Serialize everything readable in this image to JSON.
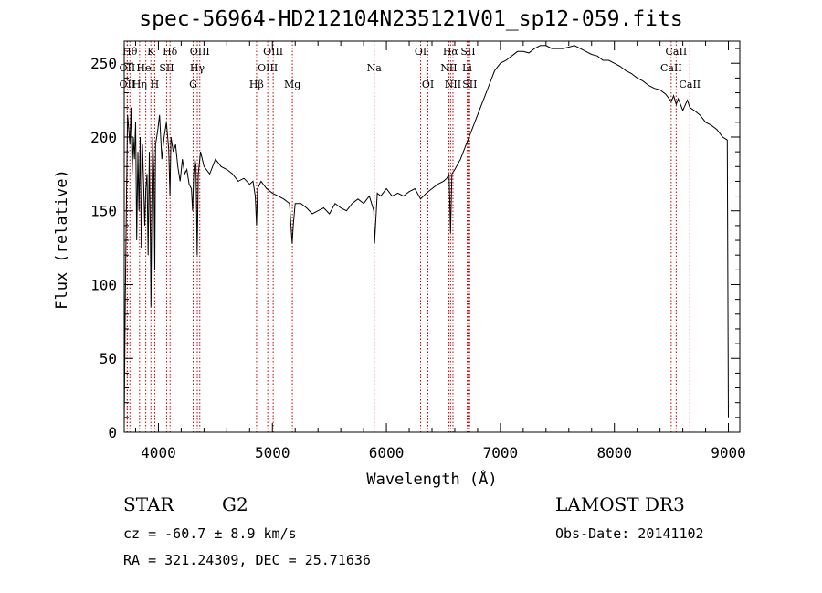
{
  "chart_data": {
    "type": "line",
    "title": "spec-56964-HD212104N235121V01_sp12-059.fits",
    "xlabel": "Wavelength (Å)",
    "ylabel": "Flux (relative)",
    "xlim": [
      3700,
      9100
    ],
    "ylim": [
      0,
      265
    ],
    "xticks": [
      4000,
      5000,
      6000,
      7000,
      8000,
      9000
    ],
    "yticks": [
      0,
      50,
      100,
      150,
      200,
      250
    ],
    "grid": false,
    "series": [
      {
        "name": "flux",
        "x": [
          3700,
          3710,
          3720,
          3730,
          3740,
          3750,
          3760,
          3770,
          3780,
          3790,
          3800,
          3810,
          3820,
          3830,
          3840,
          3850,
          3860,
          3870,
          3880,
          3890,
          3900,
          3910,
          3920,
          3930,
          3935,
          3940,
          3950,
          3960,
          3968,
          3975,
          3985,
          3995,
          4010,
          4030,
          4050,
          4070,
          4090,
          4101,
          4110,
          4130,
          4150,
          4170,
          4190,
          4210,
          4230,
          4250,
          4270,
          4290,
          4300,
          4310,
          4320,
          4330,
          4340,
          4350,
          4370,
          4400,
          4450,
          4500,
          4550,
          4600,
          4650,
          4700,
          4750,
          4800,
          4830,
          4850,
          4861,
          4870,
          4900,
          4950,
          5000,
          5050,
          5100,
          5150,
          5167,
          5173,
          5183,
          5200,
          5250,
          5300,
          5350,
          5400,
          5450,
          5500,
          5550,
          5600,
          5650,
          5700,
          5750,
          5800,
          5850,
          5890,
          5896,
          5920,
          5950,
          6000,
          6050,
          6100,
          6150,
          6200,
          6250,
          6300,
          6350,
          6400,
          6450,
          6500,
          6530,
          6550,
          6563,
          6575,
          6600,
          6650,
          6700,
          6750,
          6800,
          6850,
          6900,
          6950,
          7000,
          7050,
          7100,
          7150,
          7200,
          7250,
          7300,
          7350,
          7400,
          7450,
          7500,
          7550,
          7600,
          7650,
          7700,
          7750,
          7800,
          7850,
          7900,
          7950,
          8000,
          8050,
          8100,
          8150,
          8200,
          8250,
          8300,
          8350,
          8400,
          8450,
          8498,
          8520,
          8542,
          8560,
          8600,
          8640,
          8662,
          8700,
          8750,
          8800,
          8850,
          8900,
          8950,
          8990,
          9000
        ],
        "y": [
          5,
          90,
          160,
          215,
          205,
          195,
          220,
          175,
          200,
          185,
          210,
          130,
          190,
          150,
          200,
          125,
          195,
          170,
          140,
          165,
          175,
          120,
          190,
          130,
          85,
          140,
          200,
          175,
          110,
          195,
          200,
          205,
          215,
          185,
          200,
          210,
          192,
          160,
          200,
          190,
          195,
          180,
          170,
          185,
          175,
          178,
          168,
          165,
          150,
          175,
          185,
          180,
          120,
          175,
          190,
          180,
          175,
          185,
          180,
          178,
          175,
          170,
          172,
          168,
          170,
          160,
          140,
          165,
          170,
          165,
          162,
          160,
          158,
          155,
          135,
          128,
          140,
          155,
          155,
          152,
          148,
          150,
          152,
          148,
          155,
          152,
          150,
          155,
          158,
          155,
          160,
          150,
          128,
          162,
          160,
          165,
          160,
          162,
          160,
          163,
          165,
          158,
          162,
          165,
          168,
          170,
          172,
          175,
          135,
          175,
          178,
          185,
          195,
          205,
          215,
          225,
          235,
          245,
          250,
          252,
          255,
          258,
          258,
          257,
          260,
          262,
          262,
          260,
          260,
          260,
          261,
          262,
          260,
          258,
          256,
          255,
          252,
          252,
          250,
          248,
          245,
          243,
          240,
          238,
          235,
          233,
          232,
          229,
          224,
          228,
          222,
          226,
          218,
          225,
          220,
          218,
          215,
          210,
          208,
          205,
          200,
          198,
          10
        ]
      }
    ],
    "lines": [
      {
        "label": "Hθ",
        "x": 3750,
        "row": 1
      },
      {
        "label": "OII",
        "x": 3727,
        "row": 2
      },
      {
        "label": "OII",
        "x": 3727,
        "row": 3
      },
      {
        "label": "K",
        "x": 3934,
        "row": 1
      },
      {
        "label": "HeI",
        "x": 3889,
        "row": 2
      },
      {
        "label": "Hη",
        "x": 3835,
        "row": 3
      },
      {
        "label": "Hδ",
        "x": 4102,
        "row": 1
      },
      {
        "label": "SII",
        "x": 4072,
        "row": 2
      },
      {
        "label": "H",
        "x": 3968,
        "row": 3
      },
      {
        "label": "OIII",
        "x": 4363,
        "row": 1
      },
      {
        "label": "Hγ",
        "x": 4341,
        "row": 2
      },
      {
        "label": "G",
        "x": 4305,
        "row": 3
      },
      {
        "label": "OIII",
        "x": 5007,
        "row": 1
      },
      {
        "label": "OIII",
        "x": 4959,
        "row": 2
      },
      {
        "label": "Hβ",
        "x": 4861,
        "row": 3
      },
      {
        "label": "Mg",
        "x": 5175,
        "row": 3
      },
      {
        "label": "Na",
        "x": 5893,
        "row": 2
      },
      {
        "label": "OI",
        "x": 6300,
        "row": 1
      },
      {
        "label": "OI",
        "x": 6364,
        "row": 3
      },
      {
        "label": "Hα",
        "x": 6563,
        "row": 1
      },
      {
        "label": "SII",
        "x": 6716,
        "row": 1
      },
      {
        "label": "NII",
        "x": 6548,
        "row": 2
      },
      {
        "label": "Li",
        "x": 6708,
        "row": 2
      },
      {
        "label": "NII",
        "x": 6584,
        "row": 3
      },
      {
        "label": "SII",
        "x": 6731,
        "row": 3
      },
      {
        "label": "CaII",
        "x": 8542,
        "row": 1
      },
      {
        "label": "CaII",
        "x": 8498,
        "row": 2
      },
      {
        "label": "CaII",
        "x": 8662,
        "row": 3
      }
    ],
    "line_color": "#cc0000"
  },
  "info": {
    "class": "STAR",
    "subclass": "G2",
    "cz": "cz = -60.7 ± 8.9 km/s",
    "radec": "RA = 321.24309, DEC =  25.71636",
    "survey": "LAMOST DR3",
    "obsdate": "Obs-Date: 20141102"
  }
}
